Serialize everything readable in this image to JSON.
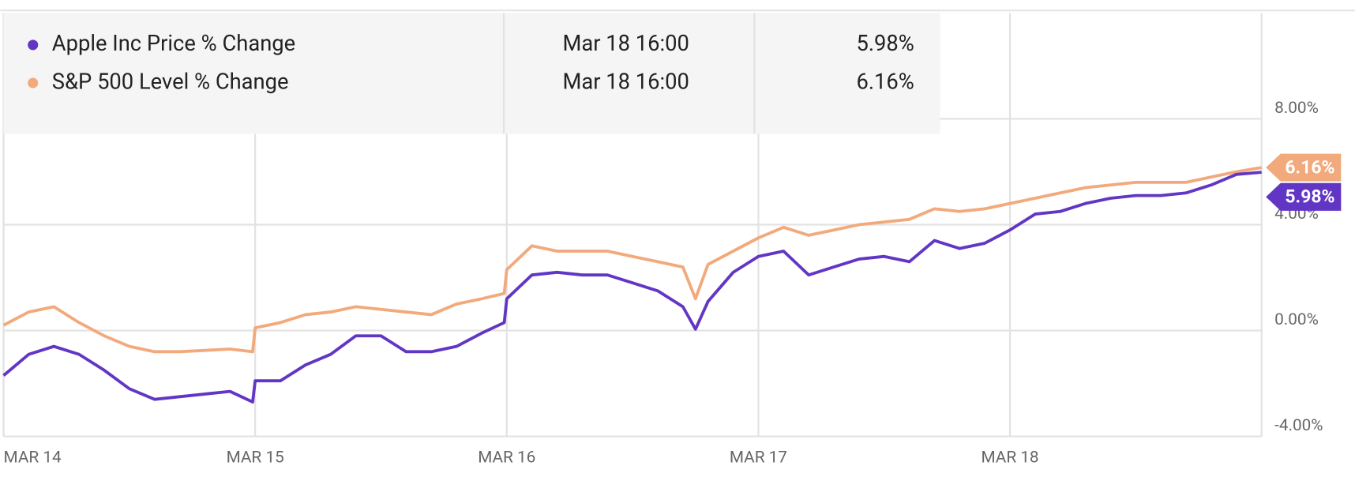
{
  "chart_data": {
    "type": "line",
    "x": [
      0,
      0.1,
      0.2,
      0.3,
      0.4,
      0.5,
      0.6,
      0.7,
      0.8,
      0.9,
      0.99,
      1.0,
      1.1,
      1.2,
      1.3,
      1.4,
      1.5,
      1.6,
      1.7,
      1.8,
      1.9,
      1.99,
      2.0,
      2.1,
      2.2,
      2.3,
      2.4,
      2.5,
      2.6,
      2.7,
      2.75,
      2.8,
      2.9,
      3.0,
      3.1,
      3.2,
      3.3,
      3.4,
      3.5,
      3.6,
      3.7,
      3.8,
      3.9,
      4.0,
      4.1,
      4.2,
      4.3,
      4.4,
      4.5,
      4.6,
      4.7,
      4.8,
      4.9,
      5.0
    ],
    "xlim": [
      0,
      5
    ],
    "xticks": [
      {
        "value": 0,
        "label": "MAR 14"
      },
      {
        "value": 1,
        "label": "MAR 15"
      },
      {
        "value": 2,
        "label": "MAR 16"
      },
      {
        "value": 3,
        "label": "MAR 17"
      },
      {
        "value": 4,
        "label": "MAR 18"
      }
    ],
    "ylim": [
      -4,
      12
    ],
    "yticks": [
      {
        "value": -4,
        "label": "-4.00%"
      },
      {
        "value": 0,
        "label": "0.00%"
      },
      {
        "value": 4,
        "label": "4.00%"
      },
      {
        "value": 8,
        "label": "8.00%"
      }
    ],
    "grid": true,
    "series": [
      {
        "name": "Apple Inc Price % Change",
        "color": "#6236c4",
        "legend_time": "Mar 18 16:00",
        "last_value": 5.98,
        "last_value_label": "5.98%",
        "values": [
          -1.7,
          -0.9,
          -0.6,
          -0.9,
          -1.5,
          -2.2,
          -2.6,
          -2.5,
          -2.4,
          -2.3,
          -2.7,
          -1.9,
          -1.9,
          -1.3,
          -0.9,
          -0.2,
          -0.2,
          -0.8,
          -0.8,
          -0.6,
          -0.1,
          0.3,
          1.2,
          2.1,
          2.2,
          2.1,
          2.1,
          1.8,
          1.5,
          0.9,
          0.05,
          1.1,
          2.2,
          2.8,
          3.0,
          2.1,
          2.4,
          2.7,
          2.8,
          2.6,
          3.4,
          3.1,
          3.3,
          3.8,
          4.4,
          4.5,
          4.8,
          5.0,
          5.1,
          5.1,
          5.2,
          5.5,
          5.9,
          5.98
        ]
      },
      {
        "name": "S&P 500 Level % Change",
        "color": "#f2a97c",
        "legend_time": "Mar 18 16:00",
        "last_value": 6.16,
        "last_value_label": "6.16%",
        "values": [
          0.2,
          0.7,
          0.9,
          0.3,
          -0.2,
          -0.6,
          -0.8,
          -0.8,
          -0.75,
          -0.7,
          -0.8,
          0.1,
          0.3,
          0.6,
          0.7,
          0.9,
          0.8,
          0.7,
          0.6,
          1.0,
          1.2,
          1.4,
          2.3,
          3.2,
          3.0,
          3.0,
          3.0,
          2.8,
          2.6,
          2.4,
          1.2,
          2.5,
          3.0,
          3.5,
          3.9,
          3.6,
          3.8,
          4.0,
          4.1,
          4.2,
          4.6,
          4.5,
          4.6,
          4.8,
          5.0,
          5.2,
          5.4,
          5.5,
          5.6,
          5.6,
          5.6,
          5.8,
          6.0,
          6.16
        ]
      }
    ]
  }
}
